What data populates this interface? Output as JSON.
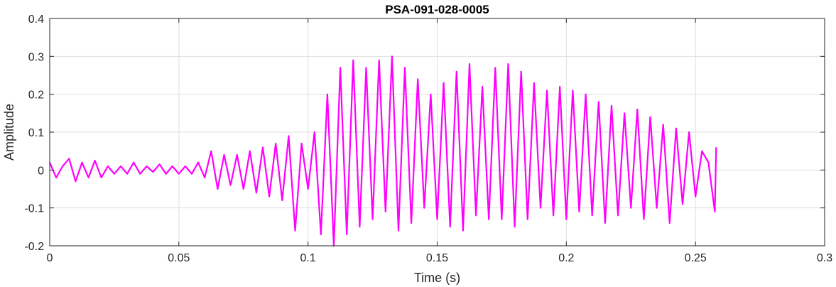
{
  "chart_data": {
    "type": "line",
    "title": "PSA-091-028-0005",
    "xlabel": "Time (s)",
    "ylabel": "Amplitude",
    "xlim": [
      0,
      0.3
    ],
    "ylim": [
      -0.2,
      0.4
    ],
    "xticks": [
      0,
      0.05,
      0.1,
      0.15,
      0.2,
      0.25,
      0.3
    ],
    "xtick_labels": [
      "0",
      "0.05",
      "0.1",
      "0.15",
      "0.2",
      "0.25",
      "0.3"
    ],
    "yticks": [
      -0.2,
      -0.1,
      0,
      0.1,
      0.2,
      0.3,
      0.4
    ],
    "ytick_labels": [
      "-0.2",
      "-0.1",
      "0",
      "0.1",
      "0.2",
      "0.3",
      "0.4"
    ],
    "grid": true,
    "line_color": "#ff00ff",
    "series": [
      {
        "x": [
          0,
          0.0025,
          0.005,
          0.0075,
          0.01,
          0.0125,
          0.015,
          0.0175,
          0.02,
          0.0225,
          0.025,
          0.0275,
          0.03,
          0.0325,
          0.035,
          0.0375,
          0.04,
          0.0425,
          0.045,
          0.0475,
          0.05,
          0.0525,
          0.055,
          0.0575,
          0.06,
          0.0625,
          0.065,
          0.0675,
          0.07,
          0.0725,
          0.075,
          0.0775,
          0.08,
          0.0825,
          0.085,
          0.0875,
          0.09,
          0.0925,
          0.095,
          0.0975,
          0.1,
          0.1025,
          0.105,
          0.1075,
          0.11,
          0.1125,
          0.115,
          0.1175,
          0.12,
          0.1225,
          0.125,
          0.1275,
          0.13,
          0.1325,
          0.135,
          0.1375,
          0.14,
          0.1425,
          0.145,
          0.1475,
          0.15,
          0.1525,
          0.155,
          0.1575,
          0.16,
          0.1625,
          0.165,
          0.1675,
          0.17,
          0.1725,
          0.175,
          0.1775,
          0.18,
          0.1825,
          0.185,
          0.1875,
          0.19,
          0.1925,
          0.195,
          0.1975,
          0.2,
          0.2025,
          0.205,
          0.2075,
          0.21,
          0.2125,
          0.215,
          0.2175,
          0.22,
          0.2225,
          0.225,
          0.2275,
          0.23,
          0.2325,
          0.235,
          0.2375,
          0.24,
          0.2425,
          0.245,
          0.2475,
          0.25,
          0.2525,
          0.255,
          0.2575,
          0.258
        ],
        "y": [
          0.02,
          -0.02,
          0.01,
          0.03,
          -0.03,
          0.02,
          -0.02,
          0.025,
          -0.02,
          0.01,
          -0.01,
          0.01,
          -0.01,
          0.02,
          -0.01,
          0.01,
          -0.005,
          0.015,
          -0.01,
          0.01,
          -0.01,
          0.01,
          -0.01,
          0.02,
          -0.02,
          0.05,
          -0.05,
          0.04,
          -0.04,
          0.04,
          -0.05,
          0.05,
          -0.06,
          0.06,
          -0.07,
          0.07,
          -0.08,
          0.09,
          -0.16,
          0.07,
          -0.05,
          0.1,
          -0.17,
          0.2,
          -0.2,
          0.27,
          -0.17,
          0.29,
          -0.15,
          0.27,
          -0.13,
          0.29,
          -0.11,
          0.3,
          -0.16,
          0.27,
          -0.14,
          0.24,
          -0.1,
          0.2,
          -0.13,
          0.23,
          -0.15,
          0.26,
          -0.16,
          0.28,
          -0.12,
          0.22,
          -0.13,
          0.27,
          -0.13,
          0.28,
          -0.15,
          0.26,
          -0.13,
          0.23,
          -0.1,
          0.21,
          -0.12,
          0.22,
          -0.13,
          0.21,
          -0.11,
          0.2,
          -0.12,
          0.18,
          -0.14,
          0.17,
          -0.12,
          0.15,
          -0.1,
          0.16,
          -0.13,
          0.14,
          -0.1,
          0.12,
          -0.14,
          0.11,
          -0.09,
          0.1,
          -0.07,
          0.05,
          0.02,
          -0.11,
          0.06
        ]
      }
    ]
  }
}
